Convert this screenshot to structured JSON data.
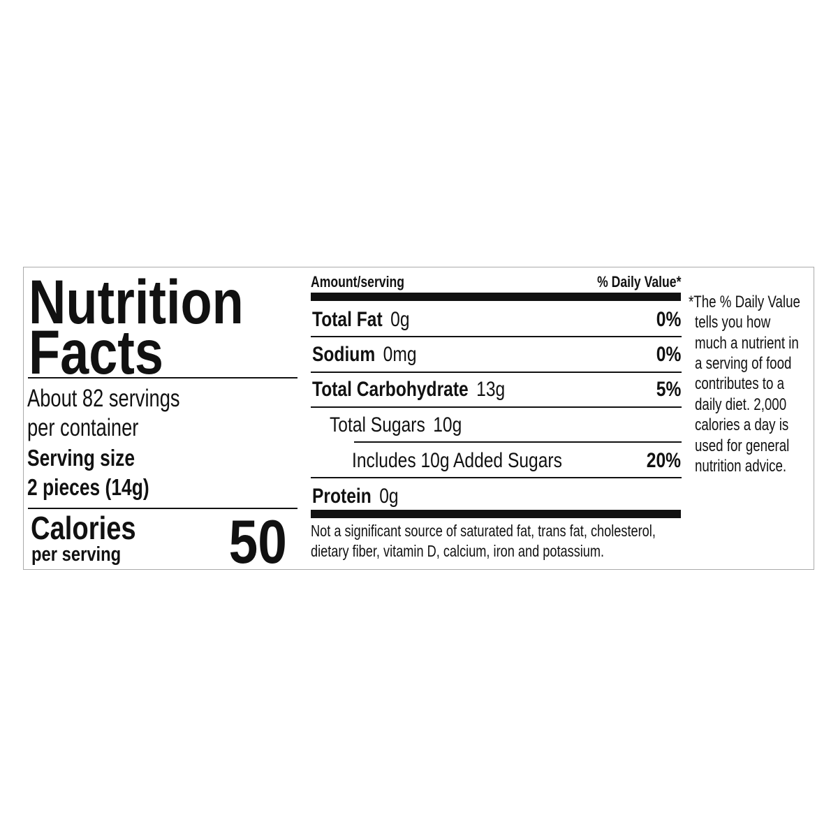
{
  "title_line1": "Nutrition",
  "title_line2": "Facts",
  "servings_line1": "About 82 servings",
  "servings_line2": "per container",
  "serving_size_label": "Serving size",
  "serving_size_value": "2 pieces (14g)",
  "calories_label": "Calories",
  "calories_sub": "per serving",
  "calories_value": "50",
  "header_amount": "Amount/serving",
  "header_dv": "% Daily Value*",
  "nutrients": [
    {
      "name": "Total Fat",
      "amount": "0g",
      "dv": "0%"
    },
    {
      "name": "Sodium",
      "amount": "0mg",
      "dv": "0%"
    },
    {
      "name": "Total Carbohydrate",
      "amount": "13g",
      "dv": "5%"
    },
    {
      "name": "Total Sugars",
      "amount": "10g",
      "dv": ""
    },
    {
      "name": "Includes 10g Added Sugars",
      "amount": "",
      "dv": "20%"
    },
    {
      "name": "Protein",
      "amount": "0g",
      "dv": ""
    }
  ],
  "not_significant_line1": "Not a significant source of saturated fat, trans fat, cholesterol,",
  "not_significant_line2": "dietary fiber, vitamin D, calcium, iron and potassium.",
  "footnote_lines": [
    "*The % Daily Value",
    "tells you how",
    "much a nutrient in",
    "a serving of food",
    "contributes to a",
    "daily diet. 2,000",
    "calories a day is",
    "used for general",
    "nutrition advice."
  ]
}
